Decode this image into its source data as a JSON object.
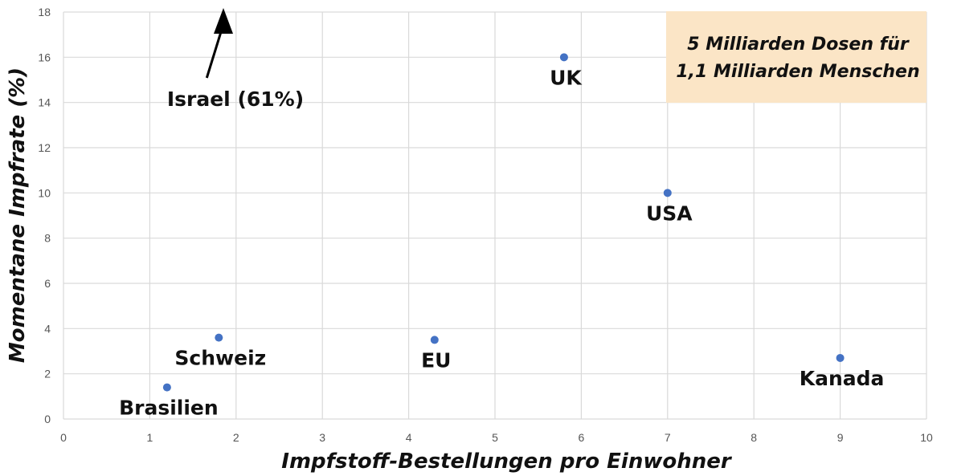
{
  "chart_data": {
    "type": "scatter",
    "title": "",
    "xlabel": "Impfstoff-Bestellungen pro Einwohner",
    "ylabel": "Momentane Impfrate (%)",
    "xlim": [
      0,
      10
    ],
    "ylim": [
      0,
      18
    ],
    "x_ticks": [
      "0",
      "1",
      "2",
      "3",
      "4",
      "5",
      "6",
      "7",
      "8",
      "9",
      "10"
    ],
    "y_ticks": [
      "0",
      "2",
      "4",
      "6",
      "8",
      "10",
      "12",
      "14",
      "16",
      "18"
    ],
    "grid": true,
    "legend": "none",
    "point_color": "#4472c4",
    "points": [
      {
        "label": "Brasilien",
        "x": 1.2,
        "y": 1.4
      },
      {
        "label": "Schweiz",
        "x": 1.8,
        "y": 3.6
      },
      {
        "label": "EU",
        "x": 4.3,
        "y": 3.5
      },
      {
        "label": "UK",
        "x": 5.8,
        "y": 16.0
      },
      {
        "label": "USA",
        "x": 7.0,
        "y": 10.0
      },
      {
        "label": "Kanada",
        "x": 9.0,
        "y": 2.7
      }
    ],
    "off_chart": {
      "label": "Israel (61%)",
      "x": 1.8
    },
    "callout": {
      "lines": [
        "5 Milliarden Dosen für",
        "1,1 Milliarden Menschen"
      ],
      "background": "#fbe5c6"
    }
  }
}
